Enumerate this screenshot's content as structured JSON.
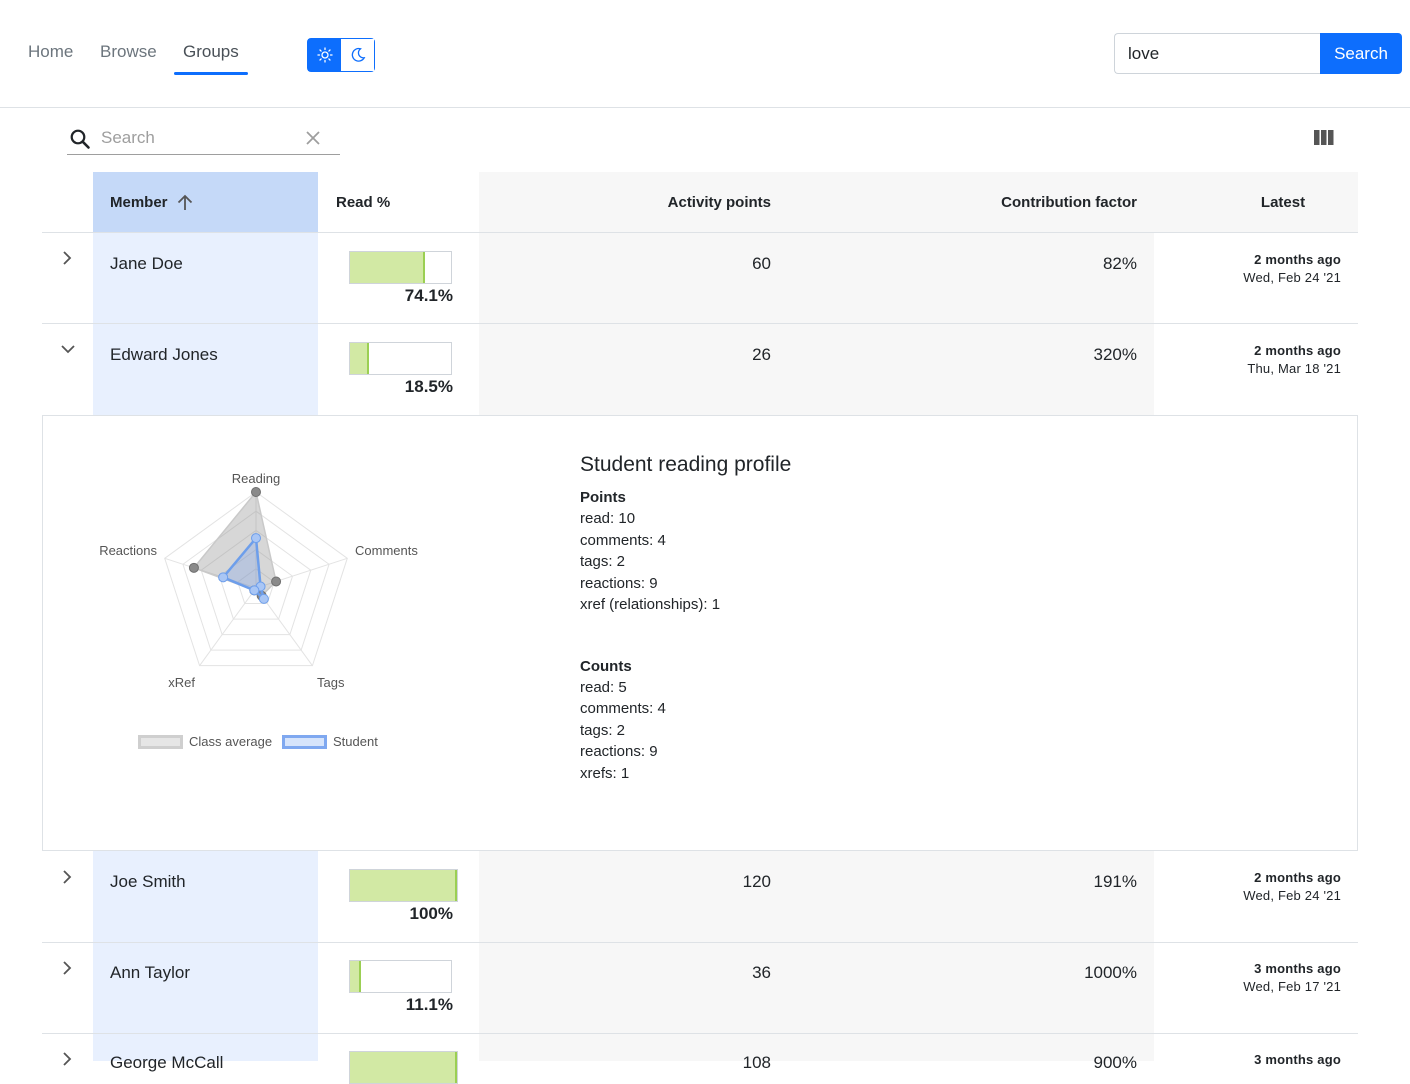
{
  "nav": {
    "links": [
      "Home",
      "Browse",
      "Groups"
    ],
    "active": "Groups"
  },
  "theme_toggle": {
    "light_icon": "sun-icon",
    "dark_icon": "moon-icon"
  },
  "top_search": {
    "value": "love",
    "button_label": "Search"
  },
  "table_search": {
    "placeholder": "Search",
    "value": ""
  },
  "columns": {
    "member": "Member",
    "read": "Read %",
    "activity": "Activity points",
    "contribution": "Contribution factor",
    "latest": "Latest"
  },
  "sort": {
    "column": "Member",
    "direction": "ascending"
  },
  "rows": [
    {
      "name": "Jane Doe",
      "read_pct": 74.1,
      "read_label": "74.1%",
      "activity": "60",
      "contribution": "82%",
      "latest_rel": "2 months ago",
      "latest_abs": "Wed, Feb 24 '21",
      "expanded": false
    },
    {
      "name": "Edward Jones",
      "read_pct": 18.5,
      "read_label": "18.5%",
      "activity": "26",
      "contribution": "320%",
      "latest_rel": "2 months ago",
      "latest_abs": "Thu, Mar 18 '21",
      "expanded": true
    },
    {
      "name": "Joe Smith",
      "read_pct": 100,
      "read_label": "100%",
      "activity": "120",
      "contribution": "191%",
      "latest_rel": "2 months ago",
      "latest_abs": "Wed, Feb 24 '21",
      "expanded": false
    },
    {
      "name": "Ann Taylor",
      "read_pct": 11.1,
      "read_label": "11.1%",
      "activity": "36",
      "contribution": "1000%",
      "latest_rel": "3 months ago",
      "latest_abs": "Wed, Feb 17 '21",
      "expanded": false
    },
    {
      "name": "George McCall",
      "read_pct": 100,
      "read_label": "",
      "activity": "108",
      "contribution": "900%",
      "latest_rel": "3 months ago",
      "latest_abs": "",
      "expanded": false
    }
  ],
  "detail": {
    "title": "Student reading profile",
    "points_heading": "Points",
    "points": [
      "read: 10",
      "comments: 4",
      "tags: 2",
      "reactions: 9",
      "xref (relationships): 1"
    ],
    "counts_heading": "Counts",
    "counts": [
      "read: 5",
      "comments: 4",
      "tags: 2",
      "reactions: 9",
      "xrefs: 1"
    ]
  },
  "chart_data": {
    "type": "radar",
    "axes": [
      "Reading",
      "Comments",
      "Tags",
      "xRef",
      "Reactions"
    ],
    "max": 1,
    "series": [
      {
        "name": "Class average",
        "values": [
          1.0,
          0.22,
          0.1,
          0.03,
          0.68
        ]
      },
      {
        "name": "Student",
        "values": [
          0.52,
          0.05,
          0.14,
          0.03,
          0.36
        ]
      }
    ],
    "legend_position": "bottom",
    "colors": {
      "Class average": "#8a8a8a",
      "Student": "#6d9eeb"
    }
  },
  "colors": {
    "accent": "#0d6efd",
    "member_col_bg": "#e8f0fe",
    "member_hdr_bg": "#c5d9f8",
    "shaded_col_bg": "#f7f7f7",
    "bar_fill": "#d2e9a4"
  }
}
